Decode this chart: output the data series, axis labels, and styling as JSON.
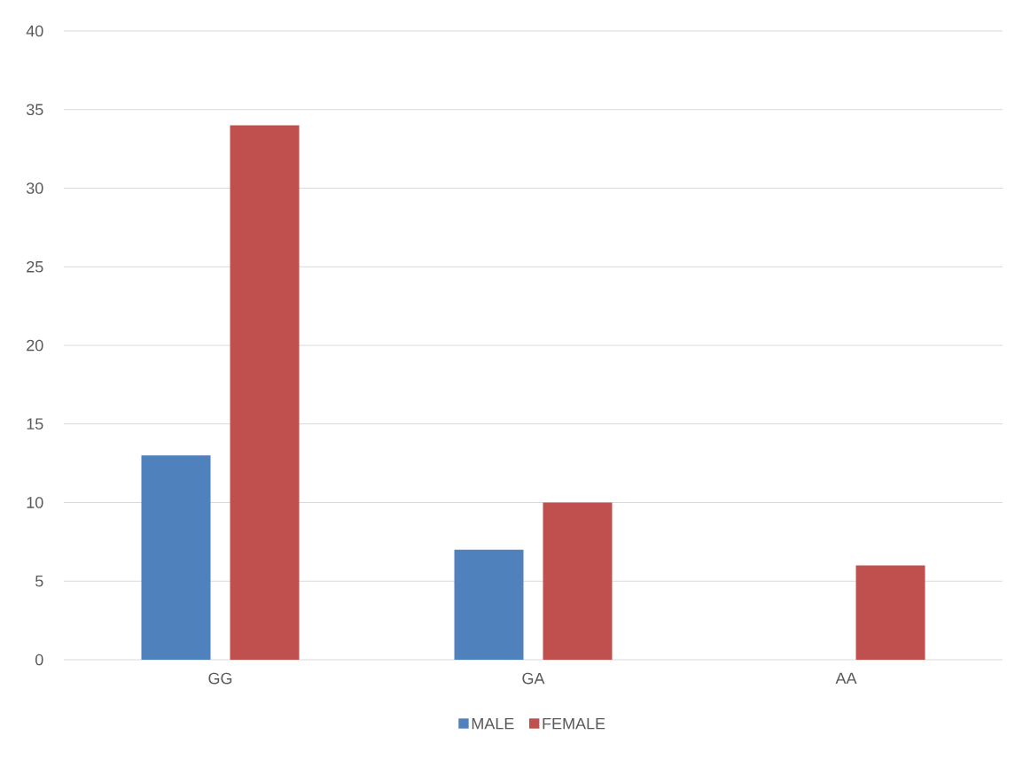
{
  "chart_data": {
    "type": "bar",
    "categories": [
      "GG",
      "GA",
      "AA"
    ],
    "series": [
      {
        "name": "MALE",
        "color": "#4f81bd",
        "values": [
          13,
          7,
          0
        ]
      },
      {
        "name": "FEMALE",
        "color": "#c0504d",
        "values": [
          34,
          10,
          6
        ]
      }
    ],
    "ylim": [
      0,
      40
    ],
    "yticks": [
      0,
      5,
      10,
      15,
      20,
      25,
      30,
      35,
      40
    ],
    "grid": "y",
    "legend": "bottom"
  }
}
